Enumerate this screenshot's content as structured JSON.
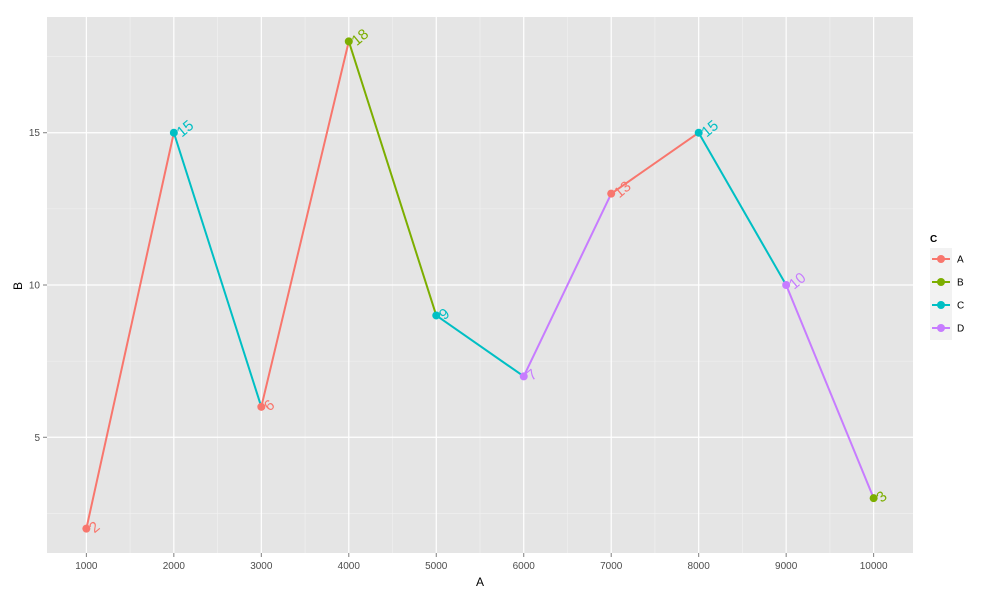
{
  "chart_data": {
    "type": "line",
    "title": "",
    "xlabel": "A",
    "ylabel": "B",
    "xlim": [
      550,
      10450
    ],
    "ylim": [
      1.2,
      18.8
    ],
    "x_ticks": [
      1000,
      2000,
      3000,
      4000,
      5000,
      6000,
      7000,
      8000,
      9000,
      10000
    ],
    "y_ticks": [
      5,
      10,
      15
    ],
    "grid": true,
    "legend": {
      "title": "C",
      "position": "right",
      "entries": [
        "A",
        "B",
        "C",
        "D"
      ]
    },
    "colors": {
      "A": "#F8766D",
      "B": "#7CAE00",
      "C": "#00BFC4",
      "D": "#C77CFF"
    },
    "points": [
      {
        "x": 1000,
        "y": 2,
        "group": "A",
        "label": "2"
      },
      {
        "x": 2000,
        "y": 15,
        "group": "C",
        "label": "15"
      },
      {
        "x": 3000,
        "y": 6,
        "group": "A",
        "label": "6"
      },
      {
        "x": 4000,
        "y": 18,
        "group": "B",
        "label": "18"
      },
      {
        "x": 5000,
        "y": 9,
        "group": "C",
        "label": "9"
      },
      {
        "x": 6000,
        "y": 7,
        "group": "D",
        "label": "7"
      },
      {
        "x": 7000,
        "y": 13,
        "group": "A",
        "label": "13"
      },
      {
        "x": 8000,
        "y": 15,
        "group": "C",
        "label": "15"
      },
      {
        "x": 9000,
        "y": 10,
        "group": "D",
        "label": "10"
      },
      {
        "x": 10000,
        "y": 3,
        "group": "B",
        "label": "3"
      }
    ],
    "segments": [
      {
        "from": 0,
        "to": 1,
        "group": "A"
      },
      {
        "from": 1,
        "to": 2,
        "group": "C"
      },
      {
        "from": 2,
        "to": 3,
        "group": "A"
      },
      {
        "from": 3,
        "to": 4,
        "group": "B"
      },
      {
        "from": 4,
        "to": 5,
        "group": "C"
      },
      {
        "from": 5,
        "to": 6,
        "group": "D"
      },
      {
        "from": 6,
        "to": 7,
        "group": "A"
      },
      {
        "from": 7,
        "to": 8,
        "group": "C"
      },
      {
        "from": 8,
        "to": 9,
        "group": "D"
      }
    ]
  }
}
